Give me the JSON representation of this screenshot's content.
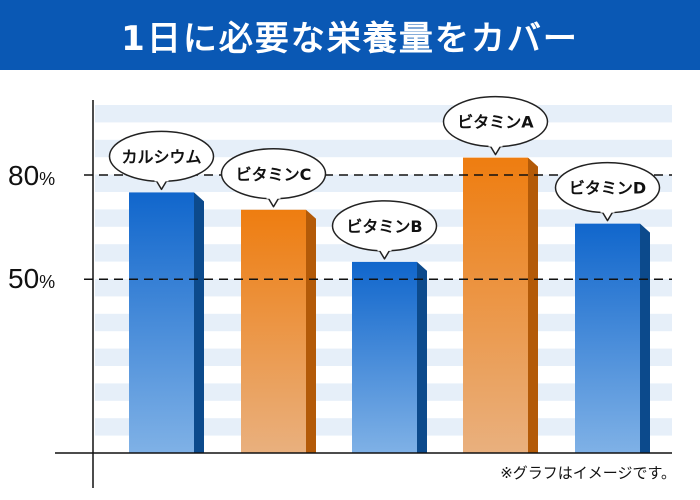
{
  "banner": {
    "title": "1日に必要な栄養量をカバー"
  },
  "note": "※グラフはイメージです。",
  "reference_lines": [
    {
      "value": 80,
      "number": "80",
      "symbol": "%"
    },
    {
      "value": 50,
      "number": "50",
      "symbol": "%"
    }
  ],
  "colors": {
    "banner": "#0a58b4",
    "blue_top": "#1066cc",
    "blue_bottom": "#7fb1e6",
    "blue_side": "#0c4a8c",
    "orange_top": "#ee7d10",
    "orange_bottom": "#e9b07e",
    "orange_side": "#b35a08",
    "stripe": "#e6eff9"
  },
  "chart_data": {
    "type": "bar",
    "categories": [
      "カルシウム",
      "ビタミンC",
      "ビタミンB",
      "ビタミンA",
      "ビタミンD"
    ],
    "values": [
      75,
      70,
      55,
      85,
      66
    ],
    "bar_colors": [
      "blue",
      "orange",
      "blue",
      "orange",
      "blue"
    ],
    "title": "1日に必要な栄養量をカバー",
    "xlabel": "",
    "ylabel": "",
    "ylim": [
      0,
      100
    ],
    "unit": "%"
  }
}
